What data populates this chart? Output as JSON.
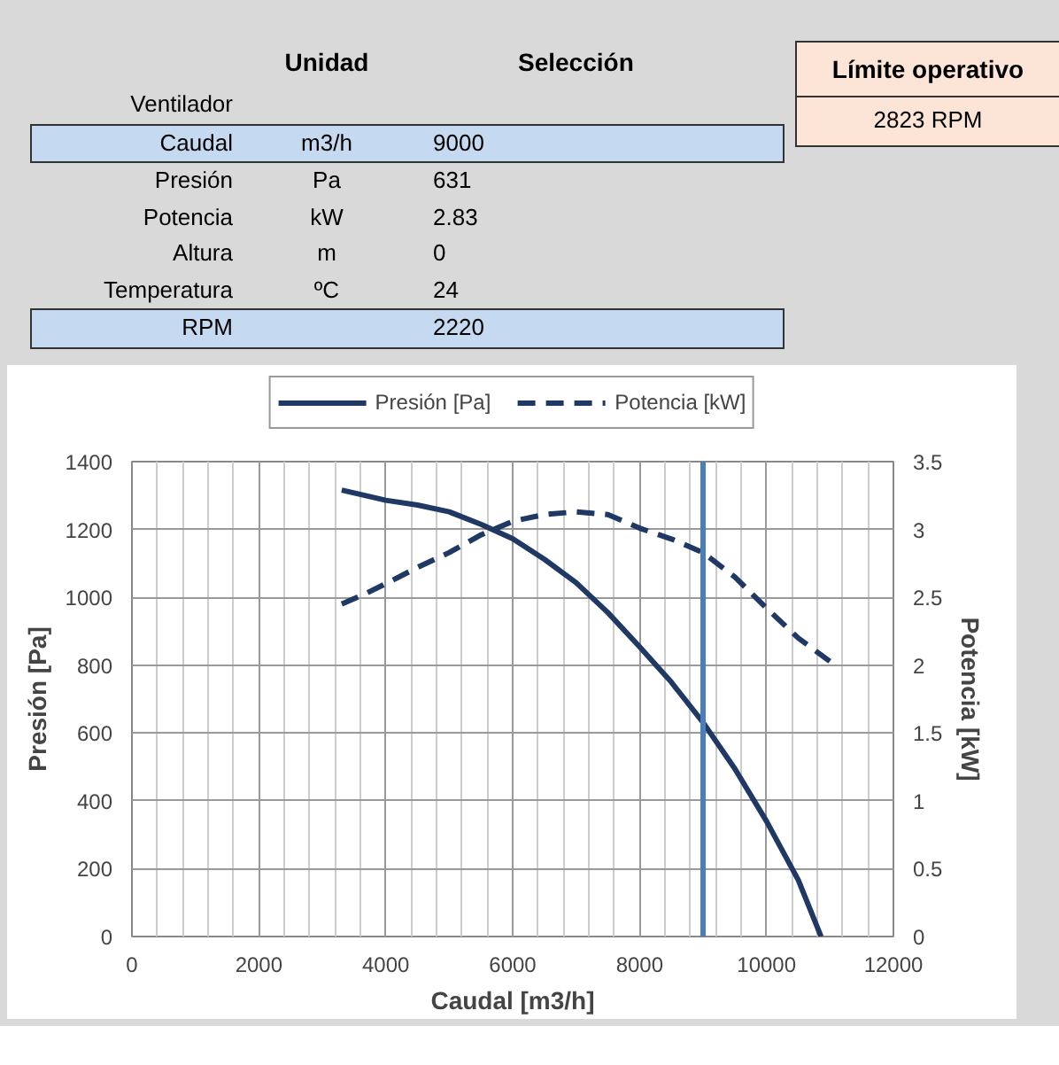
{
  "chart_data": [
    {
      "type": "other",
      "categories": [
        "Unidad",
        "Selección"
      ],
      "y_categories": [
        "Ventilador",
        "Caudal",
        "Presión",
        "Potencia",
        "Altura",
        "Temperatura",
        "RPM"
      ],
      "cell_labels": [
        [
          null,
          null
        ],
        [
          "m3/h",
          "9000"
        ],
        [
          "Pa",
          "631"
        ],
        [
          "kW",
          "2.83"
        ],
        [
          "m",
          "0"
        ],
        [
          "ºC",
          "24"
        ],
        [
          null,
          "2220"
        ]
      ],
      "colors": [
        null,
        "#c5d9f1",
        null,
        null,
        null,
        null,
        "#c5d9f1"
      ],
      "annotations": [
        "Límite operativo",
        "2823 RPM"
      ]
    },
    {
      "type": "line",
      "xlabel": "Caudal [m3/h]",
      "ylabel": "Presión [Pa]",
      "y2label": "Potencia [kW]",
      "xlim": [
        0,
        12000
      ],
      "xticks": [
        0,
        2000,
        4000,
        6000,
        8000,
        10000,
        12000
      ],
      "ylim": [
        0,
        1400
      ],
      "yticks": [
        0,
        200,
        400,
        600,
        800,
        1000,
        1200,
        1400
      ],
      "y2lim": [
        0,
        3.5
      ],
      "y2ticks": [
        0,
        0.5,
        1,
        1.5,
        2,
        2.5,
        3,
        3.5
      ],
      "grid": true,
      "legend": "top",
      "series": [
        {
          "name": "Presión [Pa]",
          "color": "#1f3864",
          "line_style": "solid",
          "x": [
            3306,
            4000,
            4500,
            5000,
            5500,
            6000,
            6500,
            7000,
            7500,
            8000,
            8500,
            9000,
            9500,
            10000,
            10500,
            10860
          ],
          "values": [
            1316,
            1286,
            1272,
            1252,
            1215,
            1173,
            1112,
            1043,
            955,
            854,
            750,
            631,
            495,
            340,
            167,
            0
          ]
        },
        {
          "name": "Potencia [kW]",
          "color": "#1f3864",
          "line_style": "dashed",
          "axis": "y2",
          "x": [
            3306,
            3650,
            4000,
            4500,
            5000,
            5500,
            6000,
            6500,
            7000,
            7500,
            8000,
            8500,
            9000,
            9500,
            10000,
            10500,
            11050
          ],
          "values": [
            2.45,
            2.52,
            2.6,
            2.72,
            2.83,
            2.96,
            3.06,
            3.11,
            3.13,
            3.11,
            3.01,
            2.93,
            2.83,
            2.65,
            2.42,
            2.2,
            2.01
          ]
        }
      ],
      "ref_lines": [
        {
          "axis": "x",
          "value": 9000,
          "color": "#4a7ebb"
        }
      ]
    }
  ]
}
